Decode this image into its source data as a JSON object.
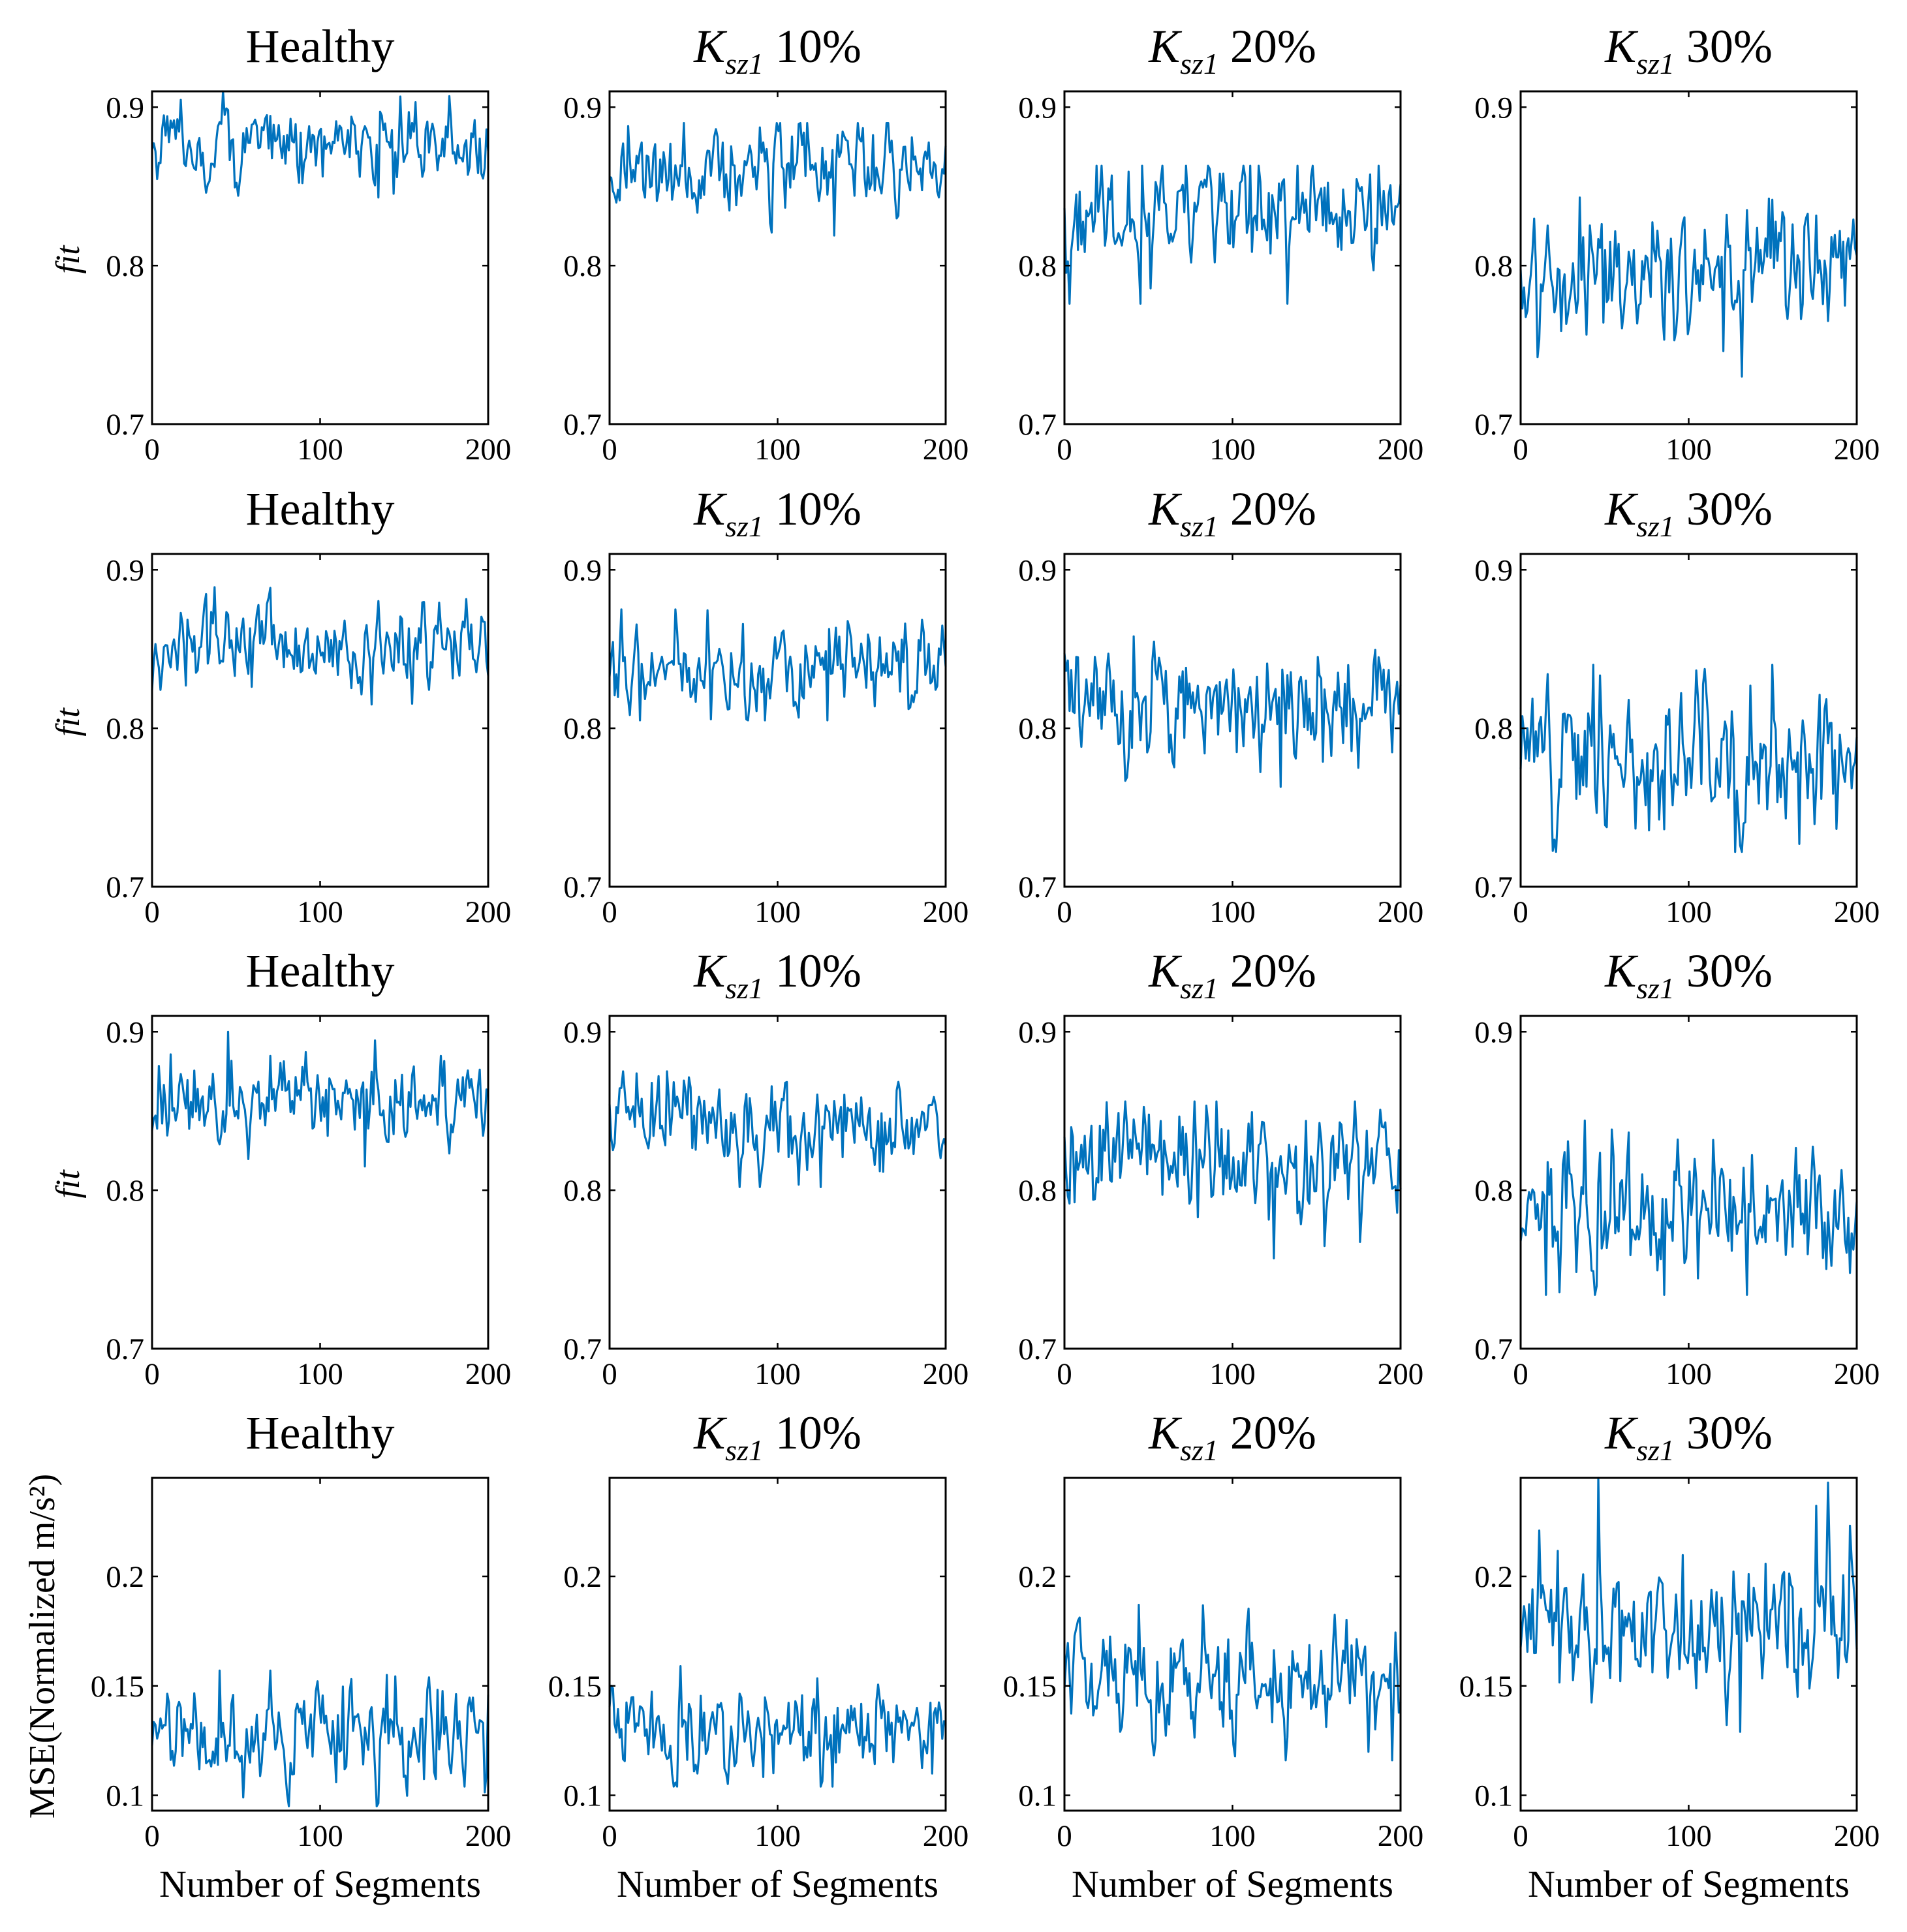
{
  "chart_data": [
    {
      "type": "line",
      "row": 0,
      "col": 0,
      "title": "Healthy",
      "title_symbol": "",
      "title_subscript": "",
      "ylabel": "fit",
      "xlabel": "",
      "xlim": [
        0,
        200
      ],
      "ylim": [
        0.7,
        0.91
      ],
      "xticks": [
        0,
        100,
        200
      ],
      "yticks": [
        0.7,
        0.8,
        0.9
      ],
      "ytick_labels": [
        "0.7",
        "0.8",
        "0.9"
      ],
      "series": [
        {
          "name": "fit",
          "color": "#0072BD",
          "n": 200,
          "mean": 0.876,
          "spread": 0.012,
          "min": 0.843,
          "max": 0.91
        }
      ]
    },
    {
      "type": "line",
      "row": 0,
      "col": 1,
      "title": "10%",
      "title_symbol": "K",
      "title_subscript": "sz1",
      "ylabel": "",
      "xlabel": "",
      "xlim": [
        0,
        200
      ],
      "ylim": [
        0.7,
        0.91
      ],
      "xticks": [
        0,
        100,
        200
      ],
      "yticks": [
        0.7,
        0.8,
        0.9
      ],
      "ytick_labels": [
        "0.7",
        "0.8",
        "0.9"
      ],
      "series": [
        {
          "name": "fit",
          "color": "#0072BD",
          "n": 200,
          "mean": 0.862,
          "spread": 0.013,
          "min": 0.819,
          "max": 0.89
        }
      ]
    },
    {
      "type": "line",
      "row": 0,
      "col": 2,
      "title": "20%",
      "title_symbol": "K",
      "title_subscript": "sz1",
      "ylabel": "",
      "xlabel": "",
      "xlim": [
        0,
        200
      ],
      "ylim": [
        0.7,
        0.91
      ],
      "xticks": [
        0,
        100,
        200
      ],
      "yticks": [
        0.7,
        0.8,
        0.9
      ],
      "ytick_labels": [
        "0.7",
        "0.8",
        "0.9"
      ],
      "series": [
        {
          "name": "fit",
          "color": "#0072BD",
          "n": 200,
          "mean": 0.832,
          "spread": 0.016,
          "min": 0.776,
          "max": 0.863
        }
      ]
    },
    {
      "type": "line",
      "row": 0,
      "col": 3,
      "title": "30%",
      "title_symbol": "K",
      "title_subscript": "sz1",
      "ylabel": "",
      "xlabel": "",
      "xlim": [
        0,
        200
      ],
      "ylim": [
        0.7,
        0.91
      ],
      "xticks": [
        0,
        100,
        200
      ],
      "yticks": [
        0.7,
        0.8,
        0.9
      ],
      "ytick_labels": [
        "0.7",
        "0.8",
        "0.9"
      ],
      "series": [
        {
          "name": "fit",
          "color": "#0072BD",
          "n": 200,
          "mean": 0.797,
          "spread": 0.02,
          "min": 0.73,
          "max": 0.843
        }
      ]
    },
    {
      "type": "line",
      "row": 1,
      "col": 0,
      "title": "Healthy",
      "title_symbol": "",
      "title_subscript": "",
      "ylabel": "fit",
      "xlabel": "",
      "xlim": [
        0,
        200
      ],
      "ylim": [
        0.7,
        0.91
      ],
      "xticks": [
        0,
        100,
        200
      ],
      "yticks": [
        0.7,
        0.8,
        0.9
      ],
      "ytick_labels": [
        "0.7",
        "0.8",
        "0.9"
      ],
      "series": [
        {
          "name": "fit",
          "color": "#0072BD",
          "n": 200,
          "mean": 0.852,
          "spread": 0.013,
          "min": 0.815,
          "max": 0.889
        }
      ]
    },
    {
      "type": "line",
      "row": 1,
      "col": 1,
      "title": "10%",
      "title_symbol": "K",
      "title_subscript": "sz1",
      "ylabel": "",
      "xlabel": "",
      "xlim": [
        0,
        200
      ],
      "ylim": [
        0.7,
        0.91
      ],
      "xticks": [
        0,
        100,
        200
      ],
      "yticks": [
        0.7,
        0.8,
        0.9
      ],
      "ytick_labels": [
        "0.7",
        "0.8",
        "0.9"
      ],
      "series": [
        {
          "name": "fit",
          "color": "#0072BD",
          "n": 200,
          "mean": 0.838,
          "spread": 0.014,
          "min": 0.805,
          "max": 0.875
        }
      ]
    },
    {
      "type": "line",
      "row": 1,
      "col": 2,
      "title": "20%",
      "title_symbol": "K",
      "title_subscript": "sz1",
      "ylabel": "",
      "xlabel": "",
      "xlim": [
        0,
        200
      ],
      "ylim": [
        0.7,
        0.91
      ],
      "xticks": [
        0,
        100,
        200
      ],
      "yticks": [
        0.7,
        0.8,
        0.9
      ],
      "ytick_labels": [
        "0.7",
        "0.8",
        "0.9"
      ],
      "series": [
        {
          "name": "fit",
          "color": "#0072BD",
          "n": 200,
          "mean": 0.817,
          "spread": 0.017,
          "min": 0.763,
          "max": 0.858
        }
      ]
    },
    {
      "type": "line",
      "row": 1,
      "col": 3,
      "title": "30%",
      "title_symbol": "K",
      "title_subscript": "sz1",
      "ylabel": "",
      "xlabel": "",
      "xlim": [
        0,
        200
      ],
      "ylim": [
        0.7,
        0.91
      ],
      "xticks": [
        0,
        100,
        200
      ],
      "yticks": [
        0.7,
        0.8,
        0.9
      ],
      "ytick_labels": [
        "0.7",
        "0.8",
        "0.9"
      ],
      "series": [
        {
          "name": "fit",
          "color": "#0072BD",
          "n": 200,
          "mean": 0.782,
          "spread": 0.021,
          "min": 0.722,
          "max": 0.84
        }
      ]
    },
    {
      "type": "line",
      "row": 2,
      "col": 0,
      "title": "Healthy",
      "title_symbol": "",
      "title_subscript": "",
      "ylabel": "fit",
      "xlabel": "",
      "xlim": [
        0,
        200
      ],
      "ylim": [
        0.7,
        0.91
      ],
      "xticks": [
        0,
        100,
        200
      ],
      "yticks": [
        0.7,
        0.8,
        0.9
      ],
      "ytick_labels": [
        "0.7",
        "0.8",
        "0.9"
      ],
      "series": [
        {
          "name": "fit",
          "color": "#0072BD",
          "n": 200,
          "mean": 0.855,
          "spread": 0.013,
          "min": 0.815,
          "max": 0.9
        }
      ]
    },
    {
      "type": "line",
      "row": 2,
      "col": 1,
      "title": "10%",
      "title_symbol": "K",
      "title_subscript": "sz1",
      "ylabel": "",
      "xlabel": "",
      "xlim": [
        0,
        200
      ],
      "ylim": [
        0.7,
        0.91
      ],
      "xticks": [
        0,
        100,
        200
      ],
      "yticks": [
        0.7,
        0.8,
        0.9
      ],
      "ytick_labels": [
        "0.7",
        "0.8",
        "0.9"
      ],
      "series": [
        {
          "name": "fit",
          "color": "#0072BD",
          "n": 200,
          "mean": 0.843,
          "spread": 0.014,
          "min": 0.802,
          "max": 0.875
        }
      ]
    },
    {
      "type": "line",
      "row": 2,
      "col": 2,
      "title": "20%",
      "title_symbol": "K",
      "title_subscript": "sz1",
      "ylabel": "",
      "xlabel": "",
      "xlim": [
        0,
        200
      ],
      "ylim": [
        0.7,
        0.91
      ],
      "xticks": [
        0,
        100,
        200
      ],
      "yticks": [
        0.7,
        0.8,
        0.9
      ],
      "ytick_labels": [
        "0.7",
        "0.8",
        "0.9"
      ],
      "series": [
        {
          "name": "fit",
          "color": "#0072BD",
          "n": 200,
          "mean": 0.82,
          "spread": 0.017,
          "min": 0.757,
          "max": 0.856
        }
      ]
    },
    {
      "type": "line",
      "row": 2,
      "col": 3,
      "title": "30%",
      "title_symbol": "K",
      "title_subscript": "sz1",
      "ylabel": "",
      "xlabel": "",
      "xlim": [
        0,
        200
      ],
      "ylim": [
        0.7,
        0.91
      ],
      "xticks": [
        0,
        100,
        200
      ],
      "yticks": [
        0.7,
        0.8,
        0.9
      ],
      "ytick_labels": [
        "0.7",
        "0.8",
        "0.9"
      ],
      "series": [
        {
          "name": "fit",
          "color": "#0072BD",
          "n": 200,
          "mean": 0.786,
          "spread": 0.019,
          "min": 0.734,
          "max": 0.844
        }
      ]
    },
    {
      "type": "line",
      "row": 3,
      "col": 0,
      "title": "Healthy",
      "title_symbol": "",
      "title_subscript": "",
      "ylabel": "MSE(Normalized m/s²)",
      "xlabel": "Number of Segments",
      "xlim": [
        0,
        200
      ],
      "ylim": [
        0.093,
        0.245
      ],
      "xticks": [
        0,
        100,
        200
      ],
      "yticks": [
        0.1,
        0.15,
        0.2
      ],
      "ytick_labels": [
        "0.1",
        "0.15",
        "0.2"
      ],
      "series": [
        {
          "name": "MSE",
          "color": "#0072BD",
          "n": 200,
          "mean": 0.126,
          "spread": 0.011,
          "min": 0.095,
          "max": 0.157
        }
      ]
    },
    {
      "type": "line",
      "row": 3,
      "col": 1,
      "title": "10%",
      "title_symbol": "K",
      "title_subscript": "sz1",
      "ylabel": "",
      "xlabel": "Number of Segments",
      "xlim": [
        0,
        200
      ],
      "ylim": [
        0.093,
        0.245
      ],
      "xticks": [
        0,
        100,
        200
      ],
      "yticks": [
        0.1,
        0.15,
        0.2
      ],
      "ytick_labels": [
        "0.1",
        "0.15",
        "0.2"
      ],
      "series": [
        {
          "name": "MSE",
          "color": "#0072BD",
          "n": 200,
          "mean": 0.131,
          "spread": 0.011,
          "min": 0.104,
          "max": 0.159
        }
      ]
    },
    {
      "type": "line",
      "row": 3,
      "col": 2,
      "title": "20%",
      "title_symbol": "K",
      "title_subscript": "sz1",
      "ylabel": "",
      "xlabel": "Number of Segments",
      "xlim": [
        0,
        200
      ],
      "ylim": [
        0.093,
        0.245
      ],
      "xticks": [
        0,
        100,
        200
      ],
      "yticks": [
        0.1,
        0.15,
        0.2
      ],
      "ytick_labels": [
        "0.1",
        "0.15",
        "0.2"
      ],
      "series": [
        {
          "name": "MSE",
          "color": "#0072BD",
          "n": 200,
          "mean": 0.15,
          "spread": 0.012,
          "min": 0.116,
          "max": 0.187
        }
      ]
    },
    {
      "type": "line",
      "row": 3,
      "col": 3,
      "title": "30%",
      "title_symbol": "K",
      "title_subscript": "sz1",
      "ylabel": "",
      "xlabel": "Number of Segments",
      "xlim": [
        0,
        200
      ],
      "ylim": [
        0.093,
        0.245
      ],
      "xticks": [
        0,
        100,
        200
      ],
      "yticks": [
        0.1,
        0.15,
        0.2
      ],
      "ytick_labels": [
        "0.1",
        "0.15",
        "0.2"
      ],
      "series": [
        {
          "name": "MSE",
          "color": "#0072BD",
          "n": 200,
          "mean": 0.177,
          "spread": 0.016,
          "min": 0.129,
          "max": 0.245
        }
      ]
    }
  ]
}
